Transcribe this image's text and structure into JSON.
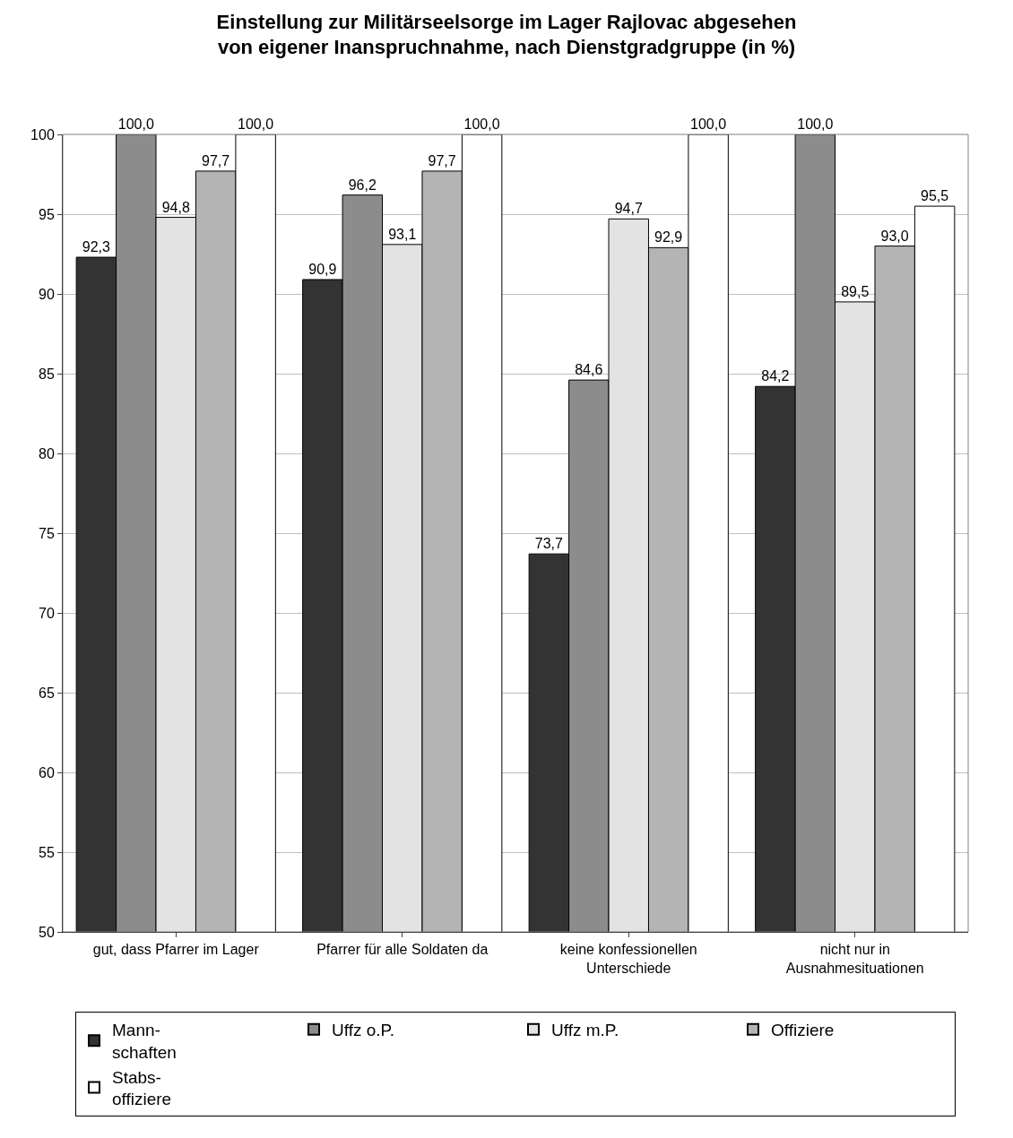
{
  "chart_data": {
    "type": "bar",
    "title": "Einstellung zur Militärseelsorge im Lager Rajlovac abgesehen\nvon eigener Inanspruchnahme, nach Dienstgradgruppe (in %)",
    "categories": [
      "gut, dass Pfarrer im Lager",
      "Pfarrer für alle Soldaten da",
      "keine konfessionellen\nUnterschiede",
      "nicht nur in\nAusnahmesituationen"
    ],
    "series": [
      {
        "name": "Mann-\nschaften",
        "color": "#333333",
        "values": [
          92.3,
          90.9,
          73.7,
          84.2
        ],
        "value_labels": [
          "92,3",
          "90,9",
          "73,7",
          "84,2"
        ]
      },
      {
        "name": "Uffz o.P.",
        "color": "#8c8c8c",
        "values": [
          100.0,
          96.2,
          84.6,
          100.0
        ],
        "value_labels": [
          "100,0",
          "96,2",
          "84,6",
          "100,0"
        ]
      },
      {
        "name": "Uffz m.P.",
        "color": "#e3e3e3",
        "values": [
          94.8,
          93.1,
          94.7,
          89.5
        ],
        "value_labels": [
          "94,8",
          "93,1",
          "94,7",
          "89,5"
        ]
      },
      {
        "name": "Offiziere",
        "color": "#b4b4b4",
        "values": [
          97.7,
          97.7,
          92.9,
          93.0
        ],
        "value_labels": [
          "97,7",
          "97,7",
          "92,9",
          "93,0"
        ]
      },
      {
        "name": "Stabs-\noffiziere",
        "color": "#ffffff",
        "values": [
          100.0,
          100.0,
          100.0,
          95.5
        ],
        "value_labels": [
          "100,0",
          "100,0",
          "100,0",
          "95,5"
        ]
      }
    ],
    "ylim": [
      50,
      100
    ],
    "yticks": [
      50,
      55,
      60,
      65,
      70,
      75,
      80,
      85,
      90,
      95,
      100
    ],
    "grid": "y",
    "legend": "bottom"
  }
}
